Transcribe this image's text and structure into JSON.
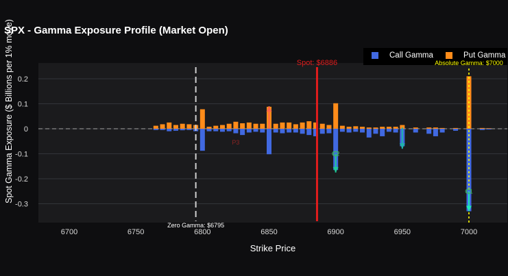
{
  "title": "SPX - Gamma Exposure Profile (Market Open)",
  "legend": {
    "call_label": "Call Gamma",
    "put_label": "Put Gamma",
    "call_color": "#4169e1",
    "put_color": "#ff8c1a"
  },
  "chart_data": {
    "type": "bar",
    "xlabel": "Strike Price",
    "ylabel": "Spot Gamma Exposure ($ Billions per 1% move)",
    "xlim": [
      6680,
      6740
    ],
    "ylim": [
      -0.37,
      0.255
    ],
    "xticks": [
      6700,
      6750,
      6800,
      6850,
      6900,
      6950,
      7000,
      7050
    ],
    "yticks": [
      -0.3,
      -0.2,
      -0.1,
      0,
      0.1,
      0.2
    ],
    "grid": true,
    "legend_position": "top-right",
    "strikes": [
      6765,
      6770,
      6775,
      6780,
      6785,
      6790,
      6795,
      6800,
      6805,
      6810,
      6815,
      6820,
      6825,
      6830,
      6835,
      6840,
      6845,
      6850,
      6855,
      6860,
      6865,
      6870,
      6875,
      6880,
      6885,
      6890,
      6895,
      6900,
      6905,
      6910,
      6915,
      6920,
      6925,
      6930,
      6935,
      6940,
      6945,
      6950,
      6960,
      6970,
      6975,
      6980,
      6990,
      7000,
      7010,
      7015
    ],
    "series": [
      {
        "name": "Call Gamma",
        "values": [
          -0.005,
          -0.005,
          -0.01,
          -0.008,
          -0.006,
          -0.005,
          -0.01,
          -0.088,
          -0.01,
          -0.01,
          -0.012,
          -0.01,
          -0.018,
          -0.025,
          -0.015,
          -0.012,
          -0.015,
          -0.102,
          -0.015,
          -0.018,
          -0.015,
          -0.015,
          -0.02,
          -0.025,
          -0.03,
          -0.02,
          -0.018,
          -0.165,
          -0.012,
          -0.015,
          -0.012,
          -0.015,
          -0.035,
          -0.02,
          -0.03,
          -0.012,
          -0.015,
          -0.07,
          -0.015,
          -0.02,
          -0.03,
          -0.015,
          -0.008,
          -0.33,
          -0.005,
          -0.003
        ]
      },
      {
        "name": "Put Gamma",
        "values": [
          0.012,
          0.018,
          0.025,
          0.015,
          0.02,
          0.018,
          0.015,
          0.078,
          0.008,
          0.012,
          0.015,
          0.02,
          0.028,
          0.022,
          0.025,
          0.02,
          0.02,
          0.088,
          0.02,
          0.025,
          0.025,
          0.018,
          0.025,
          0.03,
          0.025,
          0.02,
          0.015,
          0.102,
          0.012,
          0.008,
          0.01,
          0.008,
          0.005,
          0.005,
          0.008,
          0.008,
          0.008,
          0.015,
          0.005,
          0.005,
          0.005,
          0.003,
          0.003,
          0.21,
          0.003,
          0.002
        ]
      }
    ],
    "annotations": {
      "spot_label": "Spot: $6886",
      "spot_value": 6886,
      "spot_color": "#e11d1d",
      "zero_gamma_label": "Zero Gamma: $6795",
      "zero_gamma_value": 6795,
      "absolute_gamma_label": "Absolute Gamma: $7000",
      "absolute_gamma_value": 7000,
      "absolute_gamma_color": "#ffff00",
      "level_labels": [
        {
          "text": "P3",
          "x": 6825,
          "y": -0.055,
          "color": "#8b2323"
        },
        {
          "text": "C2",
          "x": 6900,
          "y": -0.1,
          "color": "#3cb371"
        },
        {
          "text": "C1",
          "x": 7000,
          "y": -0.25,
          "color": "#3cb371"
        }
      ],
      "arrows": [
        {
          "x": 6850,
          "from": 0.0,
          "to": 0.09,
          "color": "#ff6347"
        },
        {
          "x": 6900,
          "from": -0.1,
          "to": -0.175,
          "color": "#20c997"
        },
        {
          "x": 6950,
          "from": 0.005,
          "to": -0.08,
          "color": "#20b2aa"
        },
        {
          "x": 7000,
          "from": -0.25,
          "to": -0.33,
          "color": "#1de9b6"
        }
      ]
    }
  }
}
